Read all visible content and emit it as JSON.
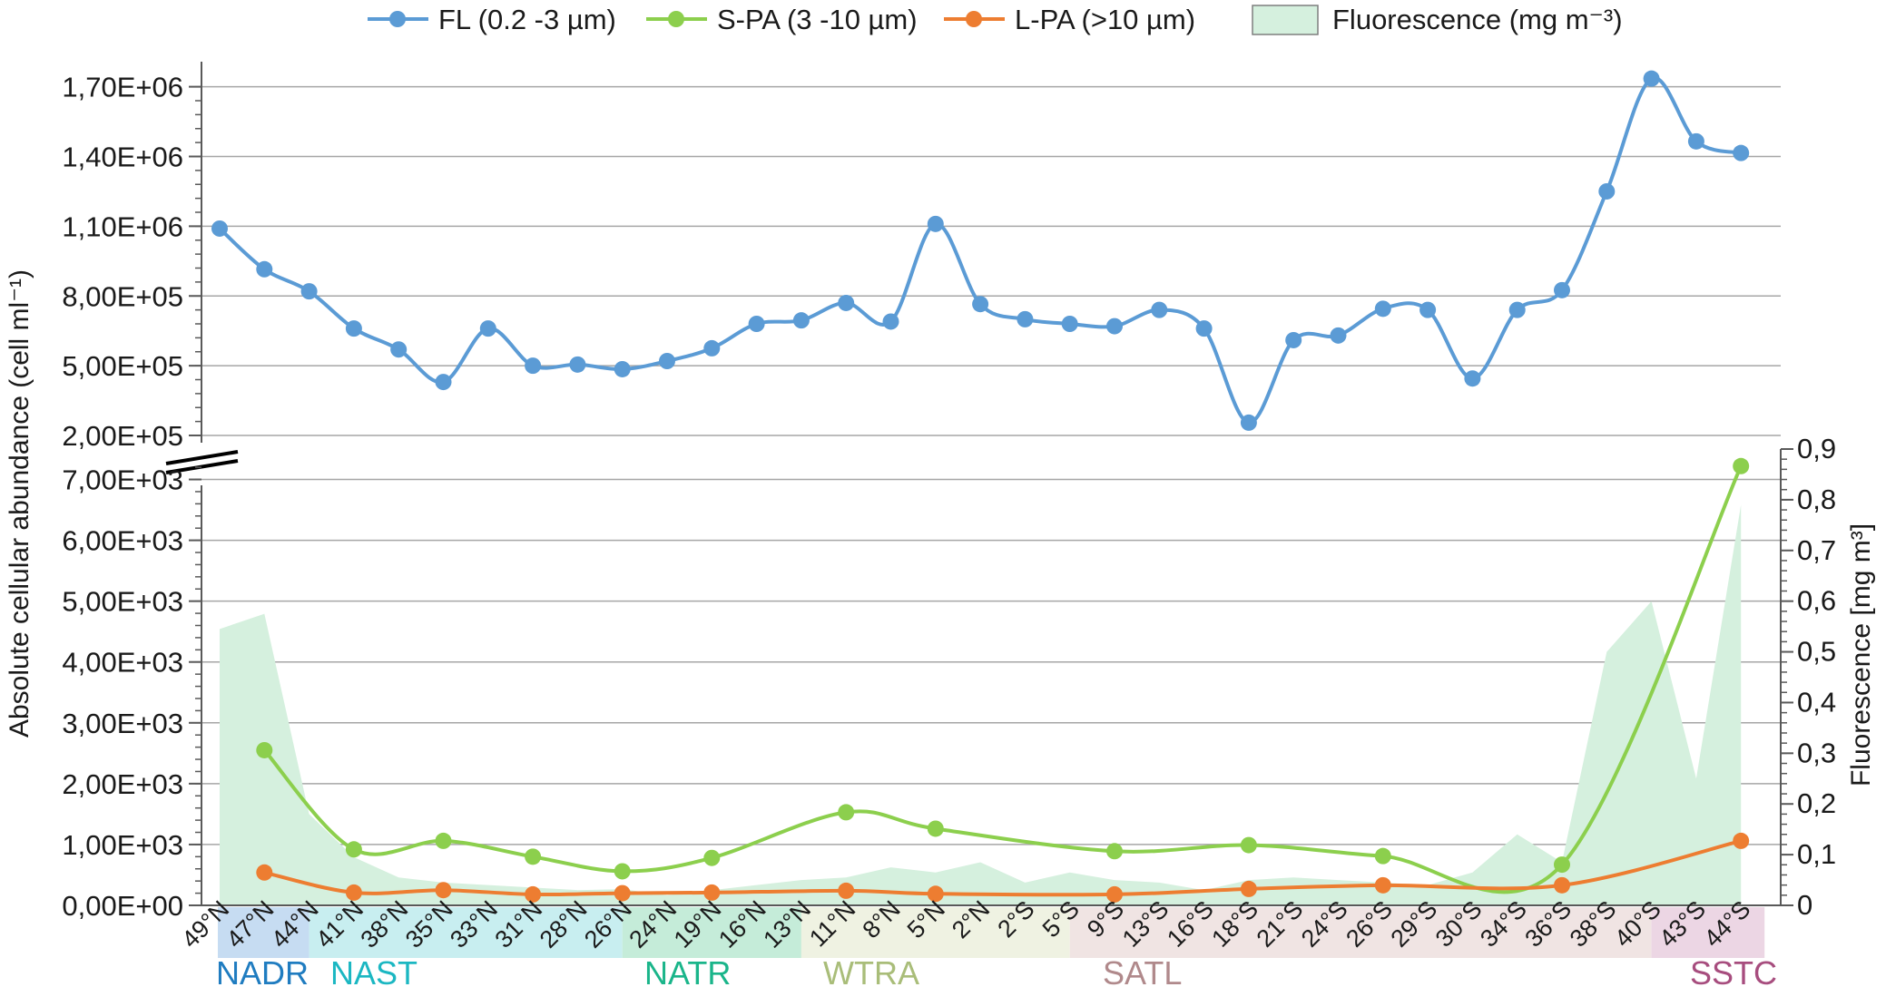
{
  "chart_data": {
    "type": "line",
    "legend": [
      {
        "label": "FL (0.2 -3 µm)",
        "color": "#5b9bd5",
        "kind": "line-marker"
      },
      {
        "label": "S-PA (3 -10 µm)",
        "color": "#8ccf4d",
        "kind": "line-marker"
      },
      {
        "label": "L-PA (>10 µm)",
        "color": "#ed7d31",
        "kind": "line-marker"
      },
      {
        "label": "Fluorescence (mg m⁻³)",
        "color": "#d5f0de",
        "kind": "area"
      }
    ],
    "legend_position": "top",
    "ylabel": "Absolute  cellular abundance (cell ml⁻¹)",
    "y2label": "Fluorescence  [mg m³]",
    "categories": [
      "49°N",
      "47°N",
      "44°N",
      "41°N",
      "38°N",
      "35°N",
      "33°N",
      "31°N",
      "28°N",
      "26°N",
      "24°N",
      "19°N",
      "16°N",
      "13°N",
      "11°N",
      "8°N",
      "5°N",
      "2°N",
      "2°S",
      "5°S",
      "9°S",
      "13°S",
      "16°S",
      "18°S",
      "21°S",
      "24°S",
      "26°S",
      "29°S",
      "30°S",
      "34°S",
      "36°S",
      "38°S",
      "40°S",
      "43°S",
      "44°S"
    ],
    "upper_axis": {
      "ylim": [
        200000,
        1800000
      ],
      "ticks": [
        200000,
        500000,
        800000,
        1100000,
        1400000,
        1700000
      ],
      "tick_labels": [
        "2,00E+05",
        "5,00E+05",
        "8,00E+05",
        "1,10E+06",
        "1,40E+06",
        "1,70E+06"
      ]
    },
    "lower_axis": {
      "ylim": [
        0,
        7500
      ],
      "ticks": [
        0,
        1000,
        2000,
        3000,
        4000,
        5000,
        6000,
        7000
      ],
      "tick_labels": [
        "0,00E+00",
        "1,00E+03",
        "2,00E+03",
        "3,00E+03",
        "4,00E+03",
        "5,00E+03",
        "6,00E+03",
        "7,00E+03"
      ]
    },
    "secondary_axis": {
      "ylim": [
        0,
        0.9
      ],
      "ticks": [
        0,
        0.1,
        0.2,
        0.3,
        0.4,
        0.5,
        0.6,
        0.7,
        0.8,
        0.9
      ],
      "tick_labels": [
        "0",
        "0,1",
        "0,2",
        "0,3",
        "0,4",
        "0,5",
        "0,6",
        "0,7",
        "0,8",
        "0,9"
      ]
    },
    "series": [
      {
        "name": "FL (0.2 -3 µm)",
        "axis": "upper",
        "color": "#5b9bd5",
        "x": [
          0,
          1,
          2,
          3,
          4,
          5,
          6,
          7,
          8,
          9,
          10,
          11,
          12,
          13,
          14,
          15,
          16,
          17,
          18,
          19,
          20,
          21,
          22,
          23,
          24,
          25,
          26,
          27,
          28,
          29,
          30,
          31,
          32,
          33,
          34
        ],
        "values": [
          1090000,
          915000,
          820000,
          660000,
          570000,
          430000,
          660000,
          500000,
          505000,
          485000,
          520000,
          575000,
          680000,
          695000,
          770000,
          690000,
          1110000,
          765000,
          700000,
          680000,
          670000,
          740000,
          660000,
          255000,
          610000,
          630000,
          745000,
          740000,
          445000,
          740000,
          825000,
          1250000,
          1735000,
          1465000,
          1415000
        ]
      },
      {
        "name": "S-PA (3 -10 µm)",
        "axis": "lower",
        "color": "#8ccf4d",
        "x": [
          1,
          3,
          5,
          7,
          9,
          11,
          14,
          16,
          20,
          23,
          26,
          30,
          34
        ],
        "values": [
          2550,
          920,
          1060,
          800,
          560,
          780,
          1530,
          1260,
          890,
          990,
          810,
          670,
          7220
        ]
      },
      {
        "name": "L-PA (>10 µm)",
        "axis": "lower",
        "color": "#ed7d31",
        "x": [
          1,
          3,
          5,
          7,
          9,
          11,
          14,
          16,
          20,
          23,
          26,
          30,
          34
        ],
        "values": [
          540,
          210,
          250,
          180,
          200,
          210,
          240,
          190,
          180,
          270,
          330,
          330,
          1060
        ]
      },
      {
        "name": "Fluorescence (mg m⁻³)",
        "axis": "secondary",
        "color": "#d5f0de",
        "type": "area",
        "x": [
          0,
          1,
          2,
          3,
          4,
          5,
          6,
          7,
          8,
          9,
          10,
          11,
          12,
          13,
          14,
          15,
          16,
          17,
          18,
          19,
          20,
          21,
          22,
          23,
          24,
          25,
          26,
          27,
          28,
          29,
          30,
          31,
          32,
          33,
          34
        ],
        "values": [
          0.545,
          0.575,
          0.18,
          0.095,
          0.055,
          0.045,
          0.04,
          0.035,
          0.03,
          0.032,
          0.02,
          0.03,
          0.04,
          0.05,
          0.055,
          0.075,
          0.065,
          0.085,
          0.045,
          0.065,
          0.05,
          0.045,
          0.03,
          0.05,
          0.055,
          0.05,
          0.045,
          0.04,
          0.065,
          0.14,
          0.085,
          0.5,
          0.6,
          0.25,
          0.79
        ]
      }
    ],
    "regions": [
      {
        "name": "NADR",
        "start": 0,
        "end": 2,
        "band_color": "#c6dcf2",
        "text_color": "#1f7cc0"
      },
      {
        "name": "NAST",
        "start": 2,
        "end": 9,
        "band_color": "#c8eef0",
        "text_color": "#1bb7c2"
      },
      {
        "name": "NATR",
        "start": 9,
        "end": 13,
        "band_color": "#c5ecd9",
        "text_color": "#1ab58a"
      },
      {
        "name": "WTRA",
        "start": 13,
        "end": 19,
        "band_color": "#eff2e2",
        "text_color": "#a9bd79"
      },
      {
        "name": "SATL",
        "start": 19,
        "end": 32,
        "band_color": "#f0e4e3",
        "text_color": "#b0898b"
      },
      {
        "name": "SSTC",
        "start": 32,
        "end": 34,
        "band_color": "#ecd6e4",
        "text_color": "#a74d7e"
      }
    ],
    "grid": true
  }
}
